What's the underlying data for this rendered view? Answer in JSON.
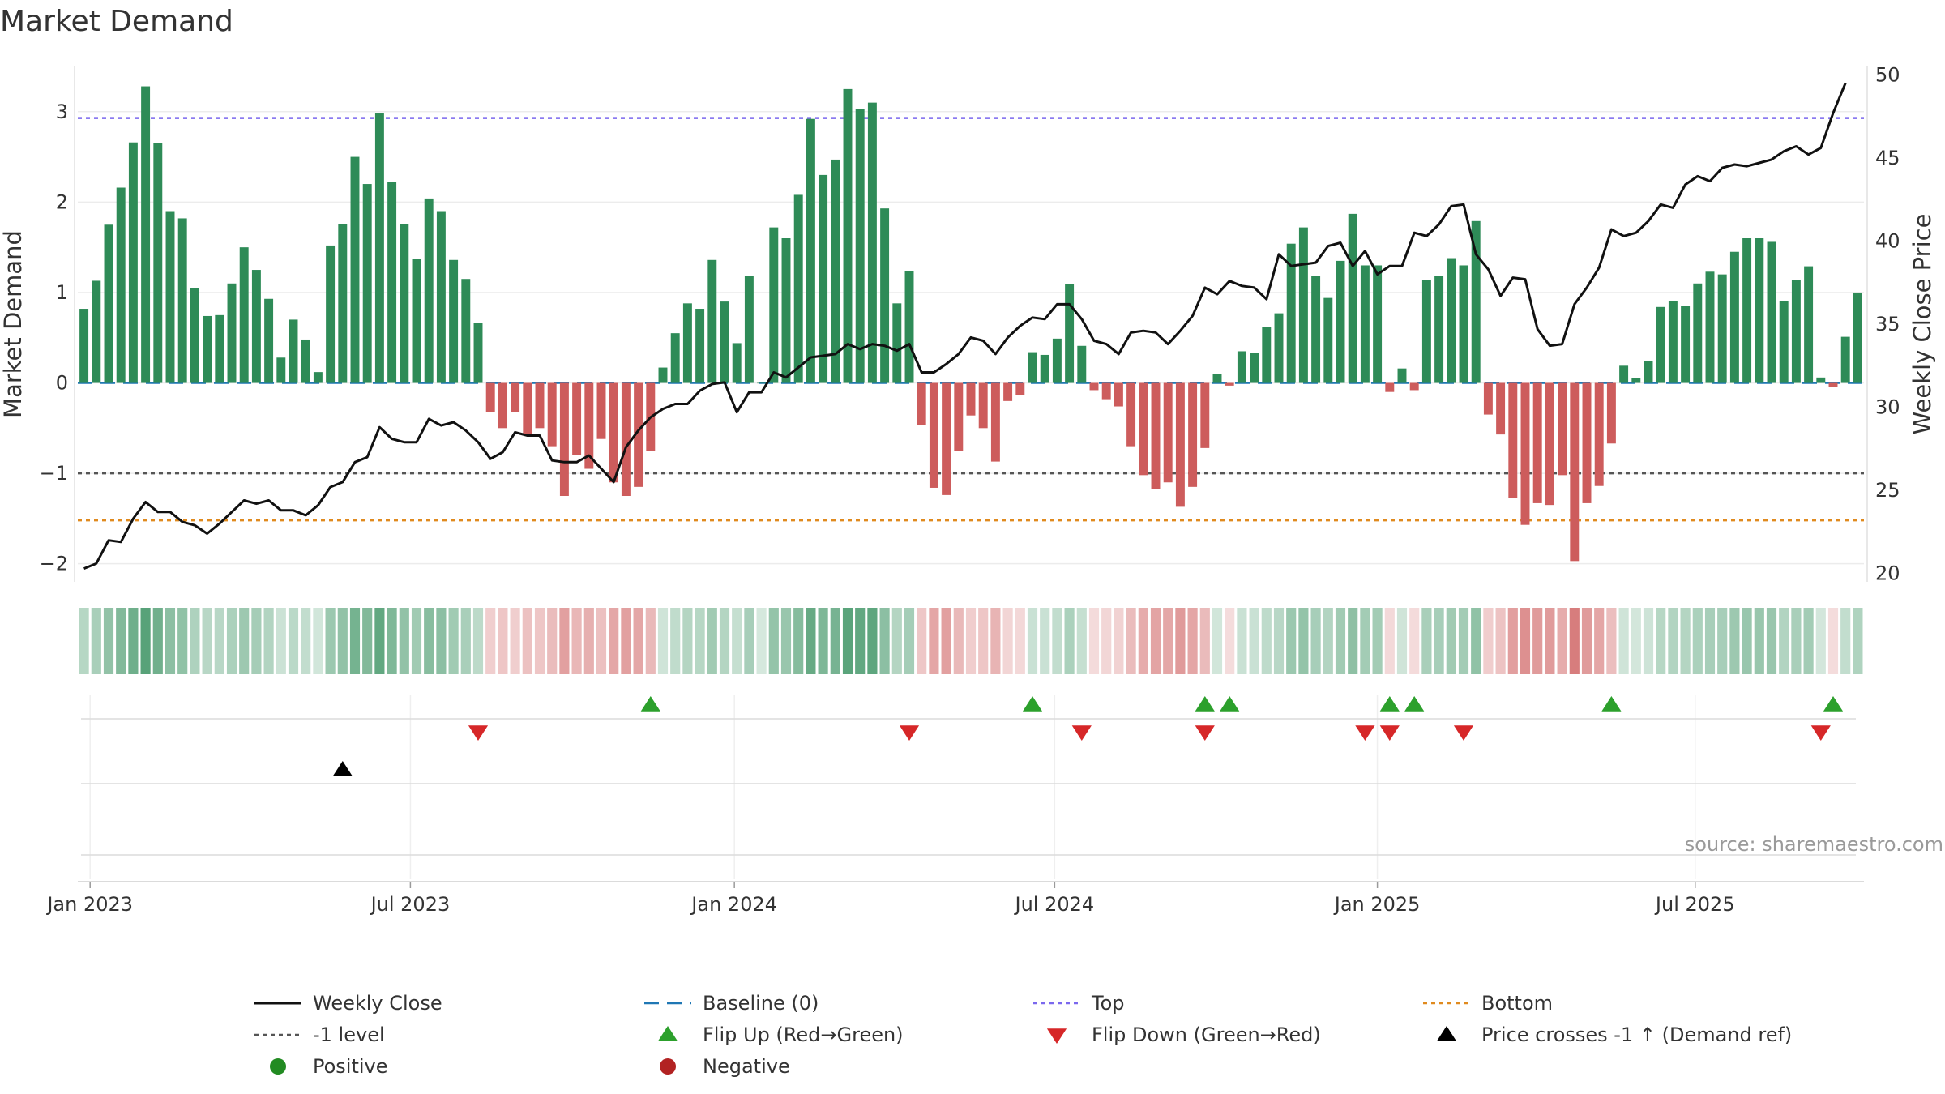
{
  "chart_data": {
    "type": "bar",
    "title": "Market Demand",
    "ylabel_left": "Market Demand",
    "ylabel_right": "Weekly Close Price",
    "source": "source: sharemaestro.com",
    "left_ylim": [
      -2.2,
      3.5
    ],
    "left_yticks": [
      "3",
      "2",
      "1",
      "0",
      "−1",
      "−2"
    ],
    "left_ytick_values": [
      3,
      2,
      1,
      0,
      -1,
      -2
    ],
    "right_ylim": [
      19.5,
      50.5
    ],
    "right_yticks": [
      "50",
      "45",
      "40",
      "35",
      "30",
      "25",
      "20"
    ],
    "right_ytick_values": [
      50,
      45,
      40,
      35,
      30,
      25,
      20
    ],
    "x_ticks": [
      {
        "label": "Jan 2023",
        "week": 1.5
      },
      {
        "label": "Jul 2023",
        "week": 27.5
      },
      {
        "label": "Jan 2024",
        "week": 53.8
      },
      {
        "label": "Jul 2024",
        "week": 79.8
      },
      {
        "label": "Jan 2025",
        "week": 106.0
      },
      {
        "label": "Jul 2025",
        "week": 131.8
      }
    ],
    "reference_lines": {
      "top": 2.93,
      "minus_one": -1.0,
      "bottom": -1.52,
      "baseline": 0
    },
    "demand": [
      0.82,
      1.13,
      1.75,
      2.16,
      2.66,
      3.28,
      2.65,
      1.9,
      1.82,
      1.05,
      0.74,
      0.75,
      1.1,
      1.5,
      1.25,
      0.93,
      0.28,
      0.7,
      0.48,
      0.12,
      1.52,
      1.76,
      2.5,
      2.2,
      2.98,
      2.22,
      1.76,
      1.37,
      2.04,
      1.9,
      1.36,
      1.15,
      0.66,
      -0.32,
      -0.5,
      -0.32,
      -0.58,
      -0.5,
      -0.7,
      -1.25,
      -0.8,
      -0.95,
      -0.62,
      -1.1,
      -1.25,
      -1.15,
      -0.75,
      0.17,
      0.55,
      0.88,
      0.82,
      1.36,
      0.9,
      0.44,
      1.18,
      0.0,
      1.72,
      1.6,
      2.08,
      2.92,
      2.3,
      2.47,
      3.25,
      3.03,
      3.1,
      1.93,
      0.88,
      1.24,
      -0.47,
      -1.16,
      -1.24,
      -0.75,
      -0.36,
      -0.5,
      -0.87,
      -0.2,
      -0.13,
      0.34,
      0.31,
      0.49,
      1.09,
      0.41,
      -0.08,
      -0.18,
      -0.26,
      -0.7,
      -1.02,
      -1.17,
      -1.1,
      -1.37,
      -1.15,
      -0.72,
      0.1,
      -0.03,
      0.35,
      0.33,
      0.62,
      0.77,
      1.54,
      1.72,
      1.18,
      0.94,
      1.35,
      1.87,
      1.3,
      1.3,
      -0.1,
      0.16,
      -0.08,
      1.14,
      1.18,
      1.38,
      1.3,
      1.79,
      -0.35,
      -0.57,
      -1.27,
      -1.57,
      -1.33,
      -1.35,
      -1.02,
      -1.97,
      -1.33,
      -1.14,
      -0.67,
      0.19,
      0.05,
      0.24,
      0.84,
      0.91,
      0.85,
      1.1,
      1.23,
      1.2,
      1.45,
      1.6,
      1.6,
      1.56,
      0.91,
      1.14,
      1.29,
      0.06,
      -0.04,
      0.51,
      1.0
    ],
    "close": [
      20.3,
      20.6,
      22.0,
      21.9,
      23.3,
      24.3,
      23.7,
      23.7,
      23.1,
      22.9,
      22.4,
      23.0,
      23.7,
      24.4,
      24.2,
      24.4,
      23.8,
      23.8,
      23.5,
      24.1,
      25.2,
      25.5,
      26.7,
      27.0,
      28.8,
      28.1,
      27.9,
      27.9,
      29.3,
      28.9,
      29.1,
      28.6,
      27.9,
      26.9,
      27.3,
      28.5,
      28.3,
      28.3,
      26.8,
      26.7,
      26.7,
      27.1,
      26.3,
      25.5,
      27.6,
      28.6,
      29.4,
      29.9,
      30.2,
      30.2,
      31.0,
      31.4,
      31.5,
      29.7,
      30.9,
      30.9,
      32.1,
      31.8,
      32.4,
      33.0,
      33.1,
      33.2,
      33.8,
      33.5,
      33.8,
      33.7,
      33.4,
      33.8,
      32.1,
      32.1,
      32.6,
      33.2,
      34.2,
      34.0,
      33.2,
      34.2,
      34.9,
      35.4,
      35.3,
      36.2,
      36.2,
      35.3,
      34.0,
      33.8,
      33.2,
      34.5,
      34.6,
      34.5,
      33.8,
      34.6,
      35.5,
      37.2,
      36.8,
      37.6,
      37.3,
      37.2,
      36.5,
      39.2,
      38.5,
      38.6,
      38.7,
      39.7,
      39.9,
      38.5,
      39.4,
      38.0,
      38.5,
      38.5,
      40.5,
      40.3,
      41.0,
      42.1,
      42.2,
      39.2,
      38.3,
      36.7,
      37.8,
      37.7,
      34.7,
      33.7,
      33.8,
      36.2,
      37.2,
      38.4,
      40.7,
      40.3,
      40.5,
      41.2,
      42.2,
      42.0,
      43.4,
      43.9,
      43.6,
      44.4,
      44.6,
      44.5,
      44.7,
      44.9,
      45.4,
      45.7,
      45.2,
      45.6,
      47.7,
      49.5
    ],
    "markers": {
      "flip_up_weeks": [
        47,
        78,
        92,
        94,
        107,
        109,
        125,
        143
      ],
      "flip_down_weeks": [
        33,
        68,
        82,
        92,
        105,
        107,
        113,
        142
      ],
      "price_cross_weeks": [
        22
      ]
    },
    "legend": [
      [
        "Weekly Close",
        "Baseline (0)",
        "Top",
        "Bottom"
      ],
      [
        "-1 level",
        "Flip Up (Red→Green)",
        "Flip Down (Green→Red)",
        "Price crosses -1 ↑ (Demand ref)"
      ],
      [
        "Positive",
        "Negative"
      ]
    ],
    "colors": {
      "positive": "#2e8b57",
      "negative": "#cd5c5c",
      "close": "#111111",
      "baseline": "#1f77b4",
      "top": "#7b68ee",
      "minus_one": "#555555",
      "bottom": "#e08a1e",
      "flip_up": "#2ca02c",
      "flip_down": "#d62728",
      "price_cross": "#000000",
      "positive_dot": "#228b22",
      "negative_dot": "#b22222"
    }
  }
}
